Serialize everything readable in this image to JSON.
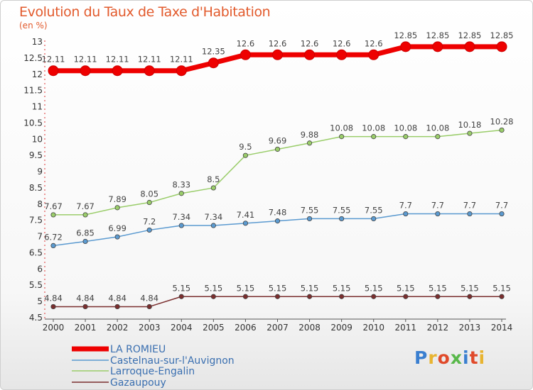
{
  "chart_data": {
    "type": "line",
    "title": "Evolution du Taux de Taxe d'Habitation",
    "ylabel": "(en %)",
    "x": [
      "2000",
      "2001",
      "2002",
      "2003",
      "2004",
      "2005",
      "2006",
      "2007",
      "2008",
      "2009",
      "2010",
      "2011",
      "2012",
      "2013",
      "2014"
    ],
    "ylim": [
      4.5,
      13
    ],
    "yticks": [
      4.5,
      5,
      5.5,
      6,
      6.5,
      7,
      7.5,
      8,
      8.5,
      9,
      9.5,
      10,
      10.5,
      11,
      11.5,
      12,
      12.5,
      13
    ],
    "grid": false,
    "legend_position": "bottom-left",
    "series": [
      {
        "name": "LA ROMIEU",
        "color": "#ee0000",
        "values": [
          12.11,
          12.11,
          12.11,
          12.11,
          12.11,
          12.35,
          12.6,
          12.6,
          12.6,
          12.6,
          12.6,
          12.85,
          12.85,
          12.85,
          12.85
        ],
        "labels": [
          "12.11",
          "12.11",
          "12.11",
          "12.11",
          "12.11",
          "12.35",
          "12.6",
          "12.6",
          "12.6",
          "12.6",
          "12.6",
          "12.85",
          "12.85",
          "12.85",
          "12.85"
        ]
      },
      {
        "name": "Castelnau-sur-l'Auvignon",
        "color": "#5b9ad0",
        "values": [
          6.72,
          6.85,
          6.99,
          7.2,
          7.34,
          7.34,
          7.41,
          7.48,
          7.55,
          7.55,
          7.55,
          7.7,
          7.7,
          7.7,
          7.7
        ],
        "labels": [
          "6.72",
          "6.85",
          "6.99",
          "7.2",
          "7.34",
          "7.34",
          "7.41",
          "7.48",
          "7.55",
          "7.55",
          "7.55",
          "7.7",
          "7.7",
          "7.7",
          "7.7"
        ]
      },
      {
        "name": "Larroque-Engalin",
        "color": "#9acd6a",
        "values": [
          7.67,
          7.67,
          7.89,
          8.05,
          8.33,
          8.5,
          9.5,
          9.69,
          9.88,
          10.08,
          10.08,
          10.08,
          10.08,
          10.18,
          10.28
        ],
        "labels": [
          "7.67",
          "7.67",
          "7.89",
          "8.05",
          "8.33",
          "8.5",
          "9.5",
          "9.69",
          "9.88",
          "10.08",
          "10.08",
          "10.08",
          "10.08",
          "10.18",
          "10.28"
        ]
      },
      {
        "name": "Gazaupouy",
        "color": "#7a2e2e",
        "values": [
          4.84,
          4.84,
          4.84,
          4.84,
          5.15,
          5.15,
          5.15,
          5.15,
          5.15,
          5.15,
          5.15,
          5.15,
          5.15,
          5.15,
          5.15
        ],
        "labels": [
          "4.84",
          "4.84",
          "4.84",
          "4.84",
          "5.15",
          "5.15",
          "5.15",
          "5.15",
          "5.15",
          "5.15",
          "5.15",
          "5.15",
          "5.15",
          "5.15",
          "5.15"
        ]
      }
    ]
  },
  "logo": {
    "text": "Proxiti",
    "colors": [
      "#3a7fd0",
      "#e8b430",
      "#e04a2a",
      "#58b84a",
      "#3a7fd0",
      "#e04a2a",
      "#e8b430"
    ]
  }
}
